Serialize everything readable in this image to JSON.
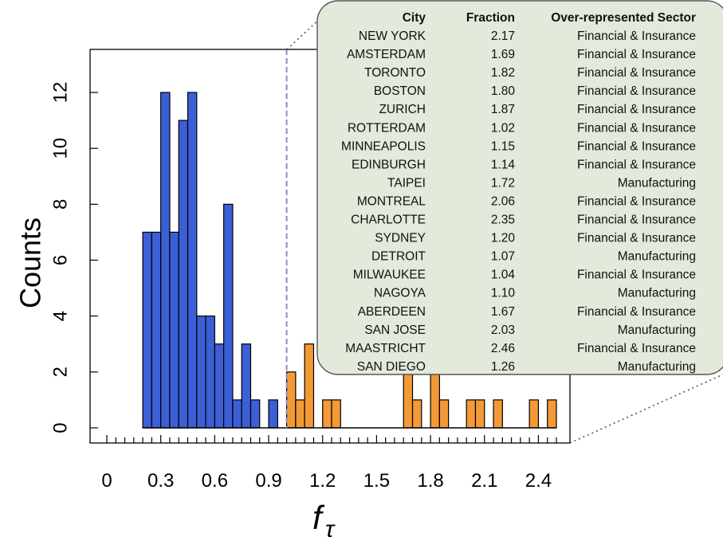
{
  "chart_data": {
    "type": "bar",
    "title": "",
    "xlabel": "f_τ",
    "ylabel": "Counts",
    "xlim": [
      0,
      2.5
    ],
    "ylim": [
      0,
      12
    ],
    "bin_width": 0.05,
    "x_ticks": [
      "0",
      "0.3",
      "0.6",
      "0.9",
      "1.2",
      "1.5",
      "1.8",
      "2.1",
      "2.4"
    ],
    "y_ticks": [
      "0",
      "2",
      "4",
      "6",
      "8",
      "10",
      "12"
    ],
    "threshold": 1.0,
    "grid": false,
    "colors": {
      "below": "#3d5fd6",
      "above": "#f39a37",
      "threshold_line": "#8c8cc8",
      "callout_fill": "#e3e9db"
    },
    "series": [
      {
        "values": [
          {
            "x": 0.2,
            "count": 7
          },
          {
            "x": 0.25,
            "count": 7
          },
          {
            "x": 0.3,
            "count": 12
          },
          {
            "x": 0.35,
            "count": 7
          },
          {
            "x": 0.4,
            "count": 11
          },
          {
            "x": 0.45,
            "count": 12
          },
          {
            "x": 0.5,
            "count": 4
          },
          {
            "x": 0.55,
            "count": 4
          },
          {
            "x": 0.6,
            "count": 3
          },
          {
            "x": 0.65,
            "count": 8
          },
          {
            "x": 0.7,
            "count": 1
          },
          {
            "x": 0.75,
            "count": 3
          },
          {
            "x": 0.8,
            "count": 1
          },
          {
            "x": 0.9,
            "count": 1
          }
        ]
      },
      {
        "values": [
          {
            "x": 1.0,
            "count": 2
          },
          {
            "x": 1.05,
            "count": 1
          },
          {
            "x": 1.1,
            "count": 3
          },
          {
            "x": 1.2,
            "count": 1
          },
          {
            "x": 1.25,
            "count": 1
          },
          {
            "x": 1.65,
            "count": 2
          },
          {
            "x": 1.7,
            "count": 1
          },
          {
            "x": 1.8,
            "count": 2
          },
          {
            "x": 1.85,
            "count": 1
          },
          {
            "x": 2.0,
            "count": 1
          },
          {
            "x": 2.05,
            "count": 1
          },
          {
            "x": 2.15,
            "count": 1
          },
          {
            "x": 2.35,
            "count": 1
          },
          {
            "x": 2.45,
            "count": 1
          }
        ]
      }
    ],
    "table": {
      "headers": [
        "City",
        "Fraction",
        "Over-represented Sector"
      ],
      "rows": [
        [
          "NEW YORK",
          "2.17",
          "Financial & Insurance"
        ],
        [
          "AMSTERDAM",
          "1.69",
          "Financial & Insurance"
        ],
        [
          "TORONTO",
          "1.82",
          "Financial & Insurance"
        ],
        [
          "BOSTON",
          "1.80",
          "Financial & Insurance"
        ],
        [
          "ZURICH",
          "1.87",
          "Financial & Insurance"
        ],
        [
          "ROTTERDAM",
          "1.02",
          "Financial & Insurance"
        ],
        [
          "MINNEAPOLIS",
          "1.15",
          "Financial & Insurance"
        ],
        [
          "EDINBURGH",
          "1.14",
          "Financial & Insurance"
        ],
        [
          "TAIPEI",
          "1.72",
          "Manufacturing"
        ],
        [
          "MONTREAL",
          "2.06",
          "Financial & Insurance"
        ],
        [
          "CHARLOTTE",
          "2.35",
          "Financial & Insurance"
        ],
        [
          "SYDNEY",
          "1.20",
          "Financial & Insurance"
        ],
        [
          "DETROIT",
          "1.07",
          "Manufacturing"
        ],
        [
          "MILWAUKEE",
          "1.04",
          "Financial & Insurance"
        ],
        [
          "NAGOYA",
          "1.10",
          "Manufacturing"
        ],
        [
          "ABERDEEN",
          "1.67",
          "Financial & Insurance"
        ],
        [
          "SAN JOSE",
          "2.03",
          "Manufacturing"
        ],
        [
          "MAASTRICHT",
          "2.46",
          "Financial & Insurance"
        ],
        [
          "SAN DIEGO",
          "1.26",
          "Manufacturing"
        ]
      ]
    }
  }
}
